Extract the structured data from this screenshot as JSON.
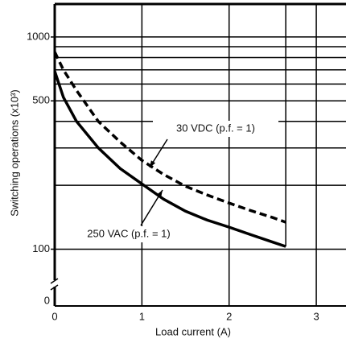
{
  "chart_data": {
    "type": "line",
    "x_label": "Load current (A)",
    "y_label": "Switching operations (x10³)",
    "y_scale": "log",
    "xlim": [
      0,
      3.35
    ],
    "xticks": [
      0,
      1,
      2,
      3
    ],
    "ylim": [
      54,
      1430
    ],
    "yticks": [
      100,
      500,
      1000
    ],
    "ygrid": [
      100,
      200,
      300,
      400,
      500,
      600,
      700,
      800,
      900,
      1000
    ],
    "axis_break_label": "0",
    "x": [
      0,
      0.1,
      0.25,
      0.5,
      0.75,
      1,
      1.25,
      1.5,
      1.75,
      2,
      2.25,
      2.5,
      2.65
    ],
    "series": [
      {
        "name": "30 VDC (p.f. = 1)",
        "color": "#000000",
        "dash": true,
        "values": [
          850,
          700,
          560,
          400,
          320,
          262,
          225,
          198,
          180,
          165,
          152,
          141,
          134
        ]
      },
      {
        "name": "250 VAC (p.f. = 1)",
        "color": "#000000",
        "dash": false,
        "values": [
          690,
          520,
          400,
          300,
          240,
          203,
          172,
          151,
          137,
          127,
          117,
          108,
          103
        ]
      }
    ]
  }
}
